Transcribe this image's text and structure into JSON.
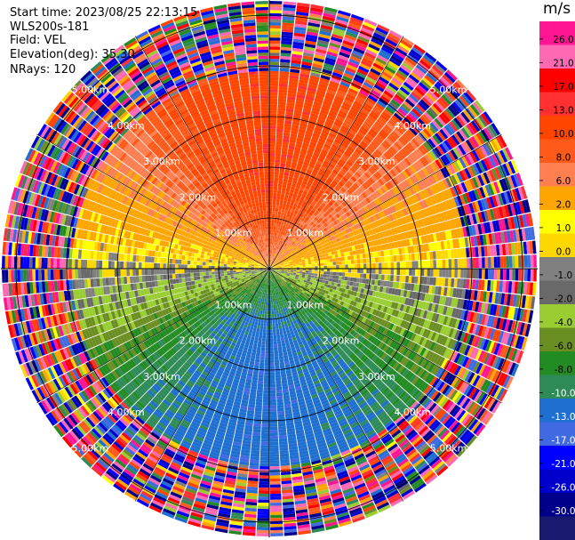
{
  "header": {
    "start_time": "Start time: 2023/08/25 22:13:15",
    "instrument": "WLS200s-181",
    "field": "Field: VEL",
    "elevation": "Elevation(deg): 35.30",
    "nrays": "NRays: 120"
  },
  "chart_data": {
    "type": "heatmap",
    "projection": "polar-ppi",
    "field": "VEL",
    "units": "m/s",
    "n_rays": 120,
    "elevation_deg": 35.3,
    "max_range_km": 5.3,
    "range_rings_km": [
      1,
      2,
      3,
      4,
      5
    ],
    "ring_labels": [
      "1.00km",
      "2.00km",
      "3.00km",
      "4.00km",
      "5.00km"
    ],
    "pattern": {
      "description_values": "positive velocities toward north, negative toward south, noisy beyond ~4 km",
      "north_peak_ms": 12,
      "south_peak_ms": -12,
      "clean_range_km": 3.9
    },
    "colorbar": {
      "title": "m/s",
      "ticks": [
        "26.0",
        "21.0",
        "17.0",
        "13.0",
        "10.0",
        "8.0",
        "6.0",
        "2.0",
        "1.0",
        "0.0",
        "-1.0",
        "-2.0",
        "-4.0",
        "-6.0",
        "-8.0",
        "-10.0",
        "-13.0",
        "-17.0",
        "-21.0",
        "-26.0",
        "-30.0"
      ],
      "bins": [
        {
          "min": 26,
          "max": 30,
          "color": "#ff1493"
        },
        {
          "min": 21,
          "max": 26,
          "color": "#ff69b4"
        },
        {
          "min": 17,
          "max": 21,
          "color": "#ff0000"
        },
        {
          "min": 13,
          "max": 17,
          "color": "#ff3030"
        },
        {
          "min": 10,
          "max": 13,
          "color": "#ff4500"
        },
        {
          "min": 8,
          "max": 10,
          "color": "#ff5a1a"
        },
        {
          "min": 6,
          "max": 8,
          "color": "#ff7f50"
        },
        {
          "min": 2,
          "max": 6,
          "color": "#ffa500"
        },
        {
          "min": 1,
          "max": 2,
          "color": "#ffff00"
        },
        {
          "min": 0,
          "max": 1,
          "color": "#ffd700"
        },
        {
          "min": -1,
          "max": 0,
          "color": "#808080"
        },
        {
          "min": -2,
          "max": -1,
          "color": "#696969"
        },
        {
          "min": -4,
          "max": -2,
          "color": "#9acd32"
        },
        {
          "min": -6,
          "max": -4,
          "color": "#6b8e23"
        },
        {
          "min": -8,
          "max": -6,
          "color": "#228b22"
        },
        {
          "min": -10,
          "max": -8,
          "color": "#2e8b57"
        },
        {
          "min": -13,
          "max": -10,
          "color": "#1e6fd0"
        },
        {
          "min": -17,
          "max": -13,
          "color": "#4169e1"
        },
        {
          "min": -21,
          "max": -17,
          "color": "#0000ff"
        },
        {
          "min": -26,
          "max": -21,
          "color": "#0000cd"
        },
        {
          "min": -30,
          "max": -26,
          "color": "#00008b"
        },
        {
          "min": -34,
          "max": -30,
          "color": "#191970"
        }
      ]
    }
  }
}
